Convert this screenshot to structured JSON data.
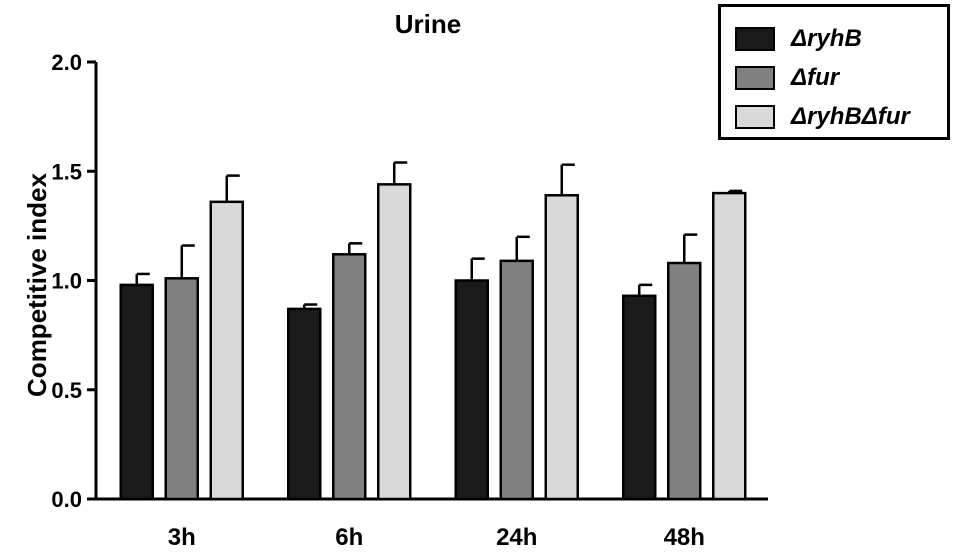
{
  "chart_data": {
    "type": "bar",
    "title": "Urine",
    "xlabel": "",
    "ylabel": "Competitive index",
    "categories": [
      "3h",
      "6h",
      "24h",
      "48h"
    ],
    "ylim": [
      0.0,
      2.0
    ],
    "yticks": [
      "0.0",
      "0.5",
      "1.0",
      "1.5",
      "2.0"
    ],
    "error_bars": true,
    "legend_position": "top-right",
    "series": [
      {
        "name": "ΔryhB",
        "color": "#1a1a1a",
        "values": [
          0.98,
          0.87,
          1.0,
          0.93
        ],
        "errors": [
          0.05,
          0.02,
          0.1,
          0.05
        ]
      },
      {
        "name": "Δfur",
        "color": "#808080",
        "values": [
          1.01,
          1.12,
          1.09,
          1.08
        ],
        "errors": [
          0.15,
          0.05,
          0.11,
          0.13
        ]
      },
      {
        "name": "ΔryhBΔfur",
        "color": "#d9d9d9",
        "values": [
          1.36,
          1.44,
          1.39,
          1.4
        ],
        "errors": [
          0.12,
          0.1,
          0.14,
          0.01
        ]
      }
    ]
  }
}
